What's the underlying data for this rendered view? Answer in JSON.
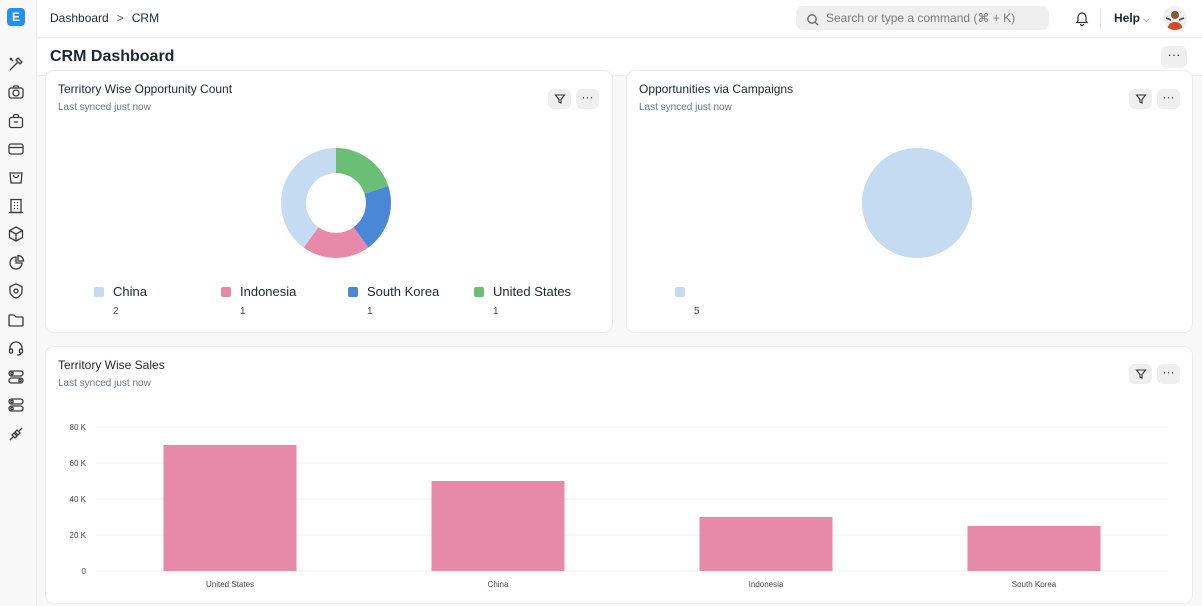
{
  "sidebar": {
    "logo_letter": "E",
    "icons": [
      "tools-icon",
      "camera-icon",
      "bag-icon",
      "card-icon",
      "shopping-icon",
      "building-icon",
      "box-icon",
      "pie-icon",
      "shield-icon",
      "folder-icon",
      "headset-icon",
      "toggle-icon",
      "toggle2-icon",
      "integration-icon"
    ]
  },
  "topbar": {
    "breadcrumb": [
      "Dashboard",
      "CRM"
    ],
    "breadcrumb_sep": ">",
    "search_placeholder": "Search or type a command (⌘ + K)",
    "help_label": "Help"
  },
  "page": {
    "title": "CRM Dashboard",
    "more_label": "···"
  },
  "cards": {
    "territory_opportunity": {
      "title": "Territory Wise Opportunity Count",
      "sub": "Last synced just now",
      "more_label": "···"
    },
    "campaigns": {
      "title": "Opportunities via Campaigns",
      "sub": "Last synced just now",
      "more_label": "···"
    },
    "territory_sales": {
      "title": "Territory Wise Sales",
      "sub": "Last synced just now",
      "more_label": "···"
    }
  },
  "colors": {
    "china": "#c5dbf2",
    "indonesia": "#e789a9",
    "south_korea": "#4a87d6",
    "united_states": "#6bbf74",
    "bar": "#e789a9",
    "campaign": "#c5dbf2"
  },
  "chart_data": [
    {
      "type": "pie",
      "title": "Territory Wise Opportunity Count",
      "donut": true,
      "categories": [
        "China",
        "Indonesia",
        "South Korea",
        "United States"
      ],
      "values": [
        2,
        1,
        1,
        1
      ],
      "value_labels": [
        "2",
        "1",
        "1",
        "1"
      ],
      "legend": "bottom"
    },
    {
      "type": "pie",
      "title": "Opportunities via Campaigns",
      "categories": [
        ""
      ],
      "values": [
        5
      ],
      "value_labels": [
        "5"
      ],
      "legend": "bottom"
    },
    {
      "type": "bar",
      "title": "Territory Wise Sales",
      "categories": [
        "United States",
        "China",
        "Indonesia",
        "South Korea"
      ],
      "values": [
        70000,
        50000,
        30000,
        25000
      ],
      "ylim": [
        0,
        80000
      ],
      "yticks": [
        0,
        20000,
        40000,
        60000,
        80000
      ],
      "ytick_labels": [
        "0",
        "20 K",
        "40 K",
        "60 K",
        "80 K"
      ],
      "grid": true
    }
  ]
}
